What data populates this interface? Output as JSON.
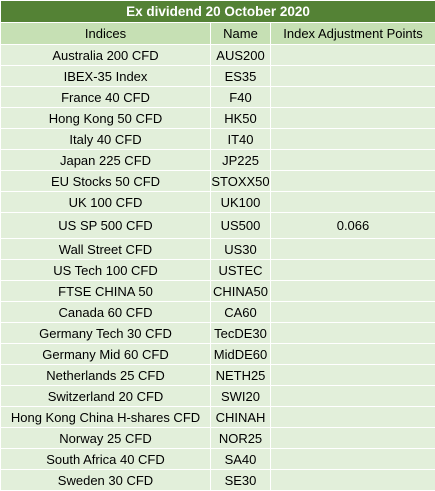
{
  "title": "Ex dividend 20 October 2020",
  "headers": [
    "Indices",
    "Name",
    "Index Adjustment Points"
  ],
  "rows": [
    {
      "index": "Australia 200 CFD",
      "name": "AUS200",
      "points": ""
    },
    {
      "index": "IBEX-35 Index",
      "name": "ES35",
      "points": ""
    },
    {
      "index": "France 40 CFD",
      "name": "F40",
      "points": ""
    },
    {
      "index": "Hong Kong 50 CFD",
      "name": "HK50",
      "points": ""
    },
    {
      "index": "Italy 40 CFD",
      "name": "IT40",
      "points": ""
    },
    {
      "index": "Japan 225 CFD",
      "name": "JP225",
      "points": ""
    },
    {
      "index": "EU Stocks 50 CFD",
      "name": "STOXX50",
      "points": ""
    },
    {
      "index": "UK 100 CFD",
      "name": "UK100",
      "points": ""
    },
    {
      "index": "US SP 500 CFD",
      "name": "US500",
      "points": "0.066"
    },
    {
      "index": "Wall Street CFD",
      "name": "US30",
      "points": ""
    },
    {
      "index": "US Tech 100 CFD",
      "name": "USTEC",
      "points": ""
    },
    {
      "index": "FTSE CHINA 50",
      "name": "CHINA50",
      "points": ""
    },
    {
      "index": "Canada 60 CFD",
      "name": "CA60",
      "points": ""
    },
    {
      "index": "Germany Tech 30 CFD",
      "name": "TecDE30",
      "points": ""
    },
    {
      "index": "Germany Mid 60 CFD",
      "name": "MidDE60",
      "points": ""
    },
    {
      "index": "Netherlands 25 CFD",
      "name": "NETH25",
      "points": ""
    },
    {
      "index": "Switzerland 20 CFD",
      "name": "SWI20",
      "points": ""
    },
    {
      "index": "Hong Kong China H-shares CFD",
      "name": "CHINAH",
      "points": ""
    },
    {
      "index": "Norway 25 CFD",
      "name": "NOR25",
      "points": ""
    },
    {
      "index": "South Africa 40 CFD",
      "name": "SA40",
      "points": ""
    },
    {
      "index": "Sweden 30 CFD",
      "name": "SE30",
      "points": ""
    }
  ],
  "colors": {
    "title_bg": "#548235",
    "header_bg": "#c6e0b4",
    "row_bg": "#e2efda"
  }
}
